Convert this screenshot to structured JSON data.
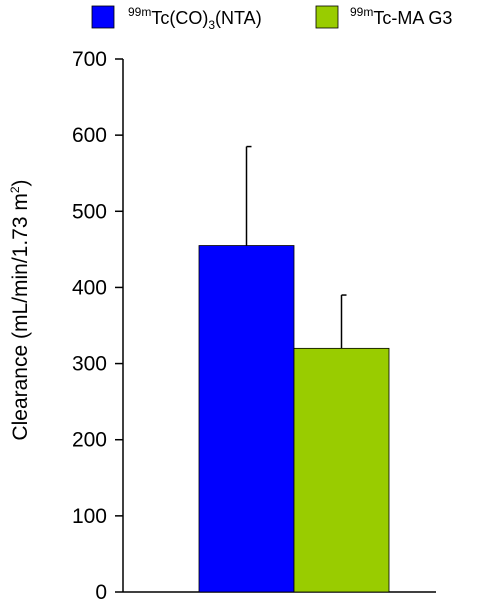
{
  "chart_data": {
    "type": "bar",
    "categories": [
      "99mTc(CO)3(NTA)",
      "99mTc-MA G3"
    ],
    "values": [
      455,
      320
    ],
    "error_plus": [
      130,
      70
    ],
    "colors": [
      "#0000ff",
      "#99cc00"
    ],
    "ylabel": {
      "main": "Clearance (mL/min/1.73 m",
      "sup": "2",
      "close": ")"
    },
    "ylim": [
      0,
      700
    ],
    "yticks": [
      0,
      100,
      200,
      300,
      400,
      500,
      600,
      700
    ],
    "grid": false,
    "legend_position": "top",
    "legend": [
      {
        "sup": "99m",
        "base": "Tc(CO)",
        "sub": "3",
        "rest": "(NTA)",
        "color": "#0000ff"
      },
      {
        "sup": "99m",
        "base": "Tc-MA G3",
        "color": "#99cc00"
      }
    ]
  }
}
